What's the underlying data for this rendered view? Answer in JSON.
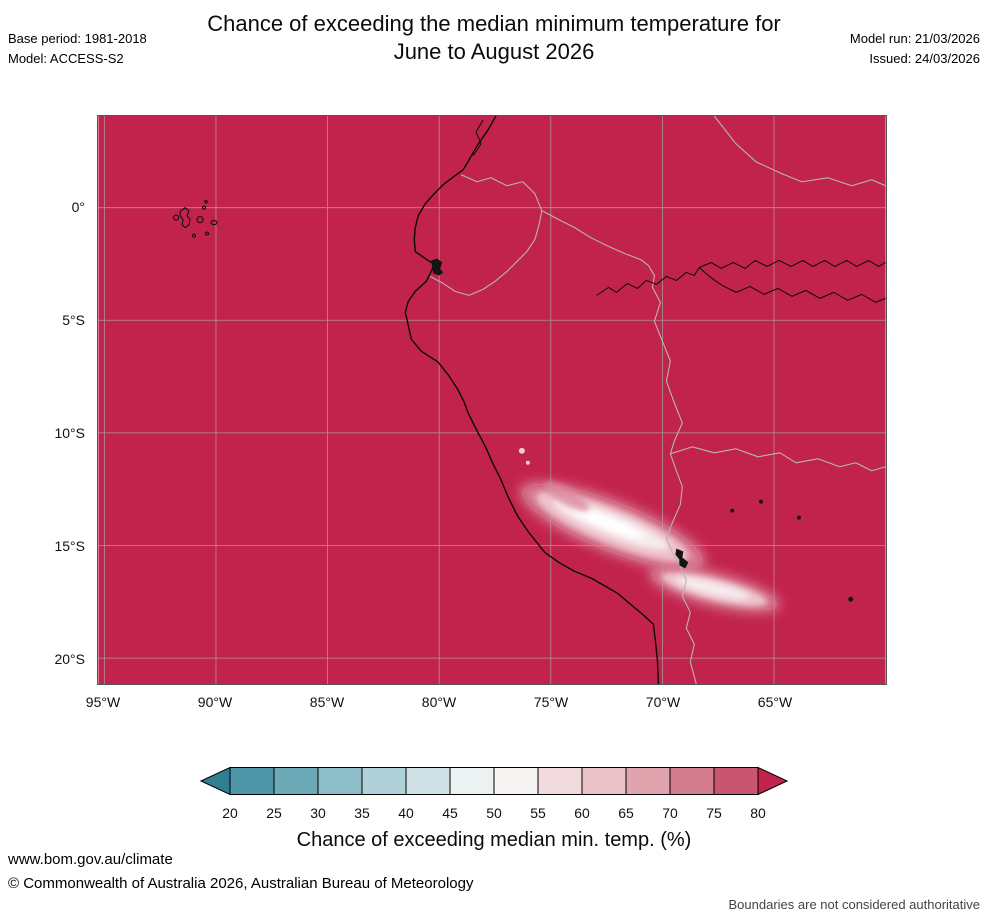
{
  "header": {
    "title_line1": "Chance of exceeding the median minimum temperature for",
    "title_line2": "June to August 2026",
    "base_period": "Base period: 1981-2018",
    "model": "Model: ACCESS-S2",
    "model_run": "Model run: 21/03/2026",
    "issued": "Issued: 24/03/2026"
  },
  "map": {
    "x_ticks": [
      "95°W",
      "90°W",
      "85°W",
      "80°W",
      "75°W",
      "70°W",
      "65°W"
    ],
    "y_ticks": [
      "0°",
      "5°S",
      "10°S",
      "15°S",
      "20°S"
    ],
    "high_chance_color": "#c2234c",
    "band_colors": [
      "#db8ba0",
      "#eec3cb",
      "#f7ebee",
      "#ffffff"
    ],
    "grid_color": "#a8a8a8",
    "coastline_color": "#0a0a0a",
    "border_color": "#b5b5b5"
  },
  "legend": {
    "label": "Chance of exceeding median min. temp. (%)",
    "ticks": [
      "20",
      "25",
      "30",
      "35",
      "40",
      "45",
      "50",
      "55",
      "60",
      "65",
      "70",
      "75",
      "80"
    ],
    "segment_colors": [
      "#4c96a8",
      "#6caab8",
      "#8dbec8",
      "#afd1d7",
      "#cfe1e4",
      "#ecf1f2",
      "#f9f4f4",
      "#f1dbde",
      "#eac3c9",
      "#dfa4ae",
      "#d47d8f",
      "#c95670"
    ],
    "left_cap_color": "#2f7f92",
    "right_cap_color": "#c2234c"
  },
  "footer": {
    "website": "www.bom.gov.au/climate",
    "copyright": "© Commonwealth of Australia 2026, Australian Bureau of Meteorology",
    "disclaimer": "Boundaries are not considered authoritative"
  },
  "chart_data": {
    "type": "heatmap",
    "title": "Chance of exceeding the median minimum temperature for June to August 2026",
    "x_tick_labels": [
      "95°W",
      "90°W",
      "85°W",
      "80°W",
      "75°W",
      "70°W",
      "65°W"
    ],
    "y_tick_labels": [
      "0°",
      "5°S",
      "10°S",
      "15°S",
      "20°S"
    ],
    "colorbar": {
      "label": "Chance of exceeding median min. temp. (%)",
      "ticks": [
        20,
        25,
        30,
        35,
        40,
        45,
        50,
        55,
        60,
        65,
        70,
        75,
        80
      ]
    },
    "summary": [
      {
        "region": "Most of mapped area (ocean and lowland South America, 95°W–60°W, 4°N–21°S)",
        "chance_percent": ">80"
      },
      {
        "region": "Andes band from southern Peru into western Bolivia (~75°W–66°W, 13°S–18°S)",
        "chance_percent": "45–60"
      }
    ]
  }
}
